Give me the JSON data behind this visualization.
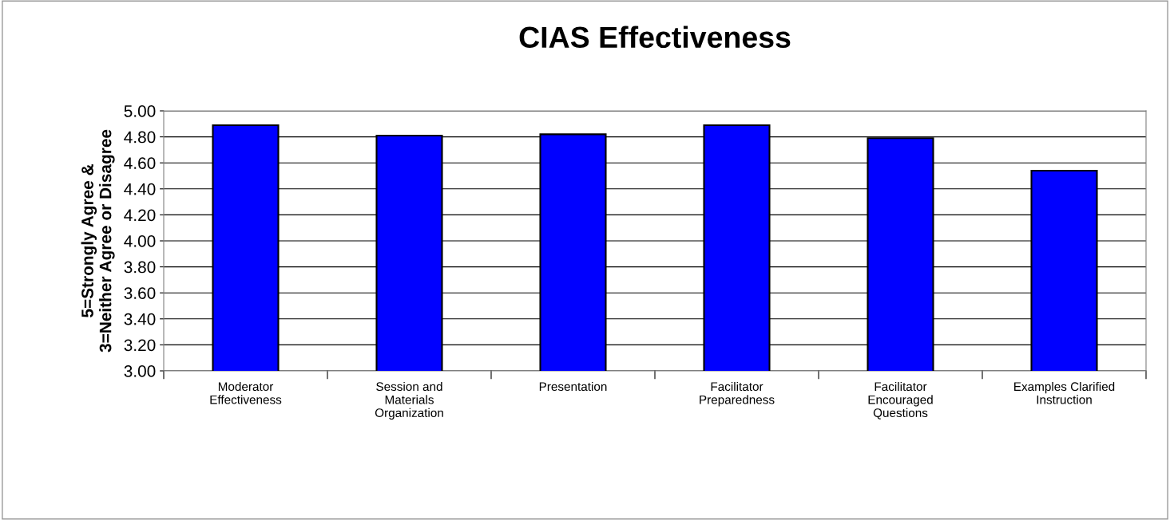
{
  "chart_data": {
    "type": "bar",
    "title": "CIAS Effectiveness",
    "ylabel": "5=Strongly Agree &\n3=Neither Agree or Disagree",
    "categories": [
      "Moderator\nEffectiveness",
      "Session and\nMaterials\nOrganization",
      "Presentation",
      "Facilitator\nPreparedness",
      "Facilitator\nEncouraged\nQuestions",
      "Examples Clarified\nInstruction"
    ],
    "values": [
      4.89,
      4.81,
      4.82,
      4.89,
      4.79,
      4.54
    ],
    "color": "#0000ff",
    "ylim": [
      3.0,
      5.0
    ],
    "yticks": [
      {
        "value": 3.0,
        "label": "3.00"
      },
      {
        "value": 3.2,
        "label": "3.20"
      },
      {
        "value": 3.4,
        "label": "3.40"
      },
      {
        "value": 3.6,
        "label": "3.60"
      },
      {
        "value": 3.8,
        "label": "3.80"
      },
      {
        "value": 4.0,
        "label": "4.00"
      },
      {
        "value": 4.2,
        "label": "4.20"
      },
      {
        "value": 4.4,
        "label": "4.40"
      },
      {
        "value": 4.6,
        "label": "4.60"
      },
      {
        "value": 4.8,
        "label": "4.80"
      },
      {
        "value": 5.0,
        "label": "5.00"
      }
    ],
    "grid": "y"
  }
}
